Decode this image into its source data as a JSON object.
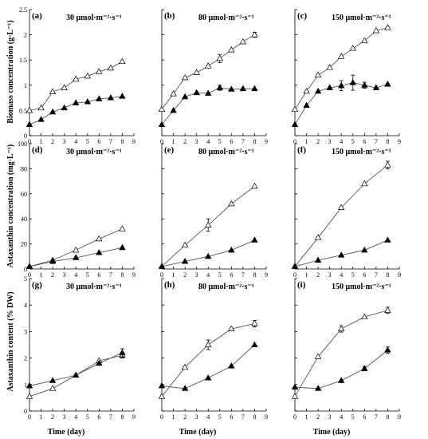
{
  "figure": {
    "xlabel": "Time (day)",
    "row_ylabels": [
      "Biomass concentration (g·L⁻¹)",
      "Astaxanthin concentration (mg·L⁻¹)",
      "Astaxanthin content (% DW)"
    ],
    "colors": {
      "axis": "#000000",
      "open_marker": "#ffffff",
      "filled_marker": "#000000",
      "line": "#555555"
    }
  },
  "chart_data": [
    {
      "type": "line",
      "panel": "(a)",
      "light": "30 μmol·m⁻²·s⁻¹",
      "xlim": [
        0,
        9
      ],
      "ylim": [
        0,
        2.5
      ],
      "xticks": [
        0,
        1,
        2,
        3,
        4,
        5,
        6,
        7,
        8,
        9
      ],
      "yticks": [
        0,
        0.5,
        1,
        1.5,
        2,
        2.5
      ],
      "series": [
        {
          "marker": "open-triangle",
          "x": [
            0,
            1,
            2,
            3,
            4,
            5,
            6,
            7,
            8
          ],
          "y": [
            0.5,
            0.55,
            0.87,
            0.95,
            1.12,
            1.18,
            1.27,
            1.34,
            1.47
          ]
        },
        {
          "marker": "filled-triangle",
          "x": [
            0,
            1,
            2,
            3,
            4,
            5,
            6,
            7,
            8
          ],
          "y": [
            0.22,
            0.32,
            0.47,
            0.55,
            0.65,
            0.67,
            0.73,
            0.75,
            0.78
          ]
        }
      ]
    },
    {
      "type": "line",
      "panel": "(b)",
      "light": "80 μmol·m⁻²·s⁻¹",
      "xlim": [
        0,
        9
      ],
      "ylim": [
        0,
        2.5
      ],
      "xticks": [
        0,
        1,
        2,
        3,
        4,
        5,
        6,
        7,
        8,
        9
      ],
      "yticks": [
        0,
        0.5,
        1,
        1.5,
        2,
        2.5
      ],
      "series": [
        {
          "marker": "open-triangle",
          "x": [
            0,
            1,
            2,
            3,
            4,
            5,
            6,
            7,
            8
          ],
          "y": [
            0.52,
            0.83,
            1.15,
            1.25,
            1.38,
            1.53,
            1.7,
            1.86,
            2.0
          ],
          "err": [
            0,
            0,
            0,
            0,
            0,
            0.08,
            0,
            0,
            0.05
          ]
        },
        {
          "marker": "filled-triangle",
          "x": [
            0,
            1,
            2,
            3,
            4,
            5,
            6,
            7,
            8
          ],
          "y": [
            0.22,
            0.5,
            0.77,
            0.85,
            0.84,
            0.95,
            0.92,
            0.93,
            0.93
          ],
          "err": [
            0,
            0,
            0,
            0,
            0,
            0.05,
            0,
            0,
            0
          ]
        }
      ]
    },
    {
      "type": "line",
      "panel": "(c)",
      "light": "150 μmol·m⁻²·s⁻¹",
      "xlim": [
        0,
        9
      ],
      "ylim": [
        0,
        2.5
      ],
      "xticks": [
        0,
        1,
        2,
        3,
        4,
        5,
        6,
        7,
        8,
        9
      ],
      "yticks": [
        0,
        0.5,
        1,
        1.5,
        2,
        2.5
      ],
      "series": [
        {
          "marker": "open-triangle",
          "x": [
            0,
            1,
            2,
            3,
            4,
            5,
            6,
            7,
            8
          ],
          "y": [
            0.52,
            0.88,
            1.2,
            1.35,
            1.57,
            1.73,
            1.88,
            2.08,
            2.14
          ]
        },
        {
          "marker": "filled-triangle",
          "x": [
            0,
            1,
            2,
            3,
            4,
            5,
            6,
            7,
            8
          ],
          "y": [
            0.22,
            0.6,
            0.88,
            0.95,
            0.99,
            1.05,
            1.0,
            0.95,
            1.02
          ],
          "err": [
            0,
            0,
            0,
            0,
            0.1,
            0.15,
            0.06,
            0,
            0
          ]
        }
      ]
    },
    {
      "type": "line",
      "panel": "(d)",
      "light": "30 μmol·m⁻²·s⁻¹",
      "xlim": [
        0,
        9
      ],
      "ylim": [
        0,
        100
      ],
      "xticks": [
        0,
        1,
        2,
        3,
        4,
        5,
        6,
        7,
        8,
        9
      ],
      "yticks": [
        0,
        20,
        40,
        60,
        80,
        100
      ],
      "series": [
        {
          "marker": "open-triangle",
          "x": [
            0,
            2,
            4,
            6,
            8
          ],
          "y": [
            2,
            7,
            15,
            24,
            32
          ]
        },
        {
          "marker": "filled-triangle",
          "x": [
            0,
            2,
            4,
            6,
            8
          ],
          "y": [
            2,
            6,
            9,
            13,
            17
          ]
        }
      ]
    },
    {
      "type": "line",
      "panel": "(e)",
      "light": "80 μmol·m⁻²·s⁻¹",
      "xlim": [
        0,
        9
      ],
      "ylim": [
        0,
        100
      ],
      "xticks": [
        0,
        1,
        2,
        3,
        4,
        5,
        6,
        7,
        8,
        9
      ],
      "yticks": [
        0,
        20,
        40,
        60,
        80,
        100
      ],
      "series": [
        {
          "marker": "open-triangle",
          "x": [
            0,
            2,
            4,
            6,
            8
          ],
          "y": [
            2,
            19,
            35,
            52,
            66
          ],
          "err": [
            0,
            0,
            5,
            0,
            0
          ]
        },
        {
          "marker": "filled-triangle",
          "x": [
            0,
            2,
            4,
            6,
            8
          ],
          "y": [
            2,
            6,
            10,
            15,
            23
          ]
        }
      ]
    },
    {
      "type": "line",
      "panel": "(f)",
      "light": "150 μmol·m⁻²·s⁻¹",
      "xlim": [
        0,
        9
      ],
      "ylim": [
        0,
        100
      ],
      "xticks": [
        0,
        1,
        2,
        3,
        4,
        5,
        6,
        7,
        8,
        9
      ],
      "yticks": [
        0,
        20,
        40,
        60,
        80,
        100
      ],
      "series": [
        {
          "marker": "open-triangle",
          "x": [
            0,
            2,
            4,
            6,
            8
          ],
          "y": [
            2,
            25,
            49,
            68,
            83
          ],
          "err": [
            0,
            0,
            0,
            0,
            3
          ]
        },
        {
          "marker": "filled-triangle",
          "x": [
            0,
            2,
            4,
            6,
            8
          ],
          "y": [
            2,
            7,
            11,
            15,
            23
          ]
        }
      ]
    },
    {
      "type": "line",
      "panel": "(g)",
      "light": "30 μmol·m⁻²·s⁻¹",
      "xlim": [
        0,
        9
      ],
      "ylim": [
        0,
        5
      ],
      "xticks": [
        0,
        1,
        2,
        3,
        4,
        5,
        6,
        7,
        8,
        9
      ],
      "yticks": [
        0,
        1,
        2,
        3,
        4,
        5
      ],
      "series": [
        {
          "marker": "open-triangle",
          "x": [
            0,
            2,
            4,
            6,
            8
          ],
          "y": [
            0.55,
            0.85,
            1.35,
            1.9,
            2.1
          ],
          "err": [
            0,
            0,
            0,
            0,
            0.1
          ]
        },
        {
          "marker": "filled-triangle",
          "x": [
            0,
            2,
            4,
            6,
            8
          ],
          "y": [
            0.95,
            1.15,
            1.35,
            1.8,
            2.2
          ],
          "err": [
            0,
            0,
            0,
            0,
            0.15
          ]
        }
      ]
    },
    {
      "type": "line",
      "panel": "(h)",
      "light": "80 μmol·m⁻²·s⁻¹",
      "xlim": [
        0,
        9
      ],
      "ylim": [
        0,
        5
      ],
      "xticks": [
        0,
        1,
        2,
        3,
        4,
        5,
        6,
        7,
        8,
        9
      ],
      "yticks": [
        0,
        1,
        2,
        3,
        4,
        5
      ],
      "series": [
        {
          "marker": "open-triangle",
          "x": [
            0,
            2,
            4,
            6,
            8
          ],
          "y": [
            0.55,
            1.65,
            2.5,
            3.1,
            3.3
          ],
          "err": [
            0,
            0,
            0.18,
            0,
            0.12
          ]
        },
        {
          "marker": "filled-triangle",
          "x": [
            0,
            2,
            4,
            6,
            8
          ],
          "y": [
            0.95,
            0.85,
            1.25,
            1.7,
            2.5
          ]
        }
      ]
    },
    {
      "type": "line",
      "panel": "(i)",
      "light": "150 μmol·m⁻²·s⁻¹",
      "xlim": [
        0,
        9
      ],
      "ylim": [
        0,
        5
      ],
      "xticks": [
        0,
        1,
        2,
        3,
        4,
        5,
        6,
        7,
        8,
        9
      ],
      "yticks": [
        0,
        1,
        2,
        3,
        4,
        5
      ],
      "series": [
        {
          "marker": "open-triangle",
          "x": [
            0,
            2,
            4,
            6,
            8
          ],
          "y": [
            0.55,
            2.05,
            3.1,
            3.55,
            3.8
          ],
          "err": [
            0,
            0,
            0.12,
            0,
            0.12
          ]
        },
        {
          "marker": "filled-triangle",
          "x": [
            0,
            2,
            4,
            6,
            8
          ],
          "y": [
            0.9,
            0.85,
            1.15,
            1.6,
            2.3
          ],
          "err": [
            0,
            0,
            0,
            0.08,
            0.12
          ]
        }
      ]
    }
  ]
}
